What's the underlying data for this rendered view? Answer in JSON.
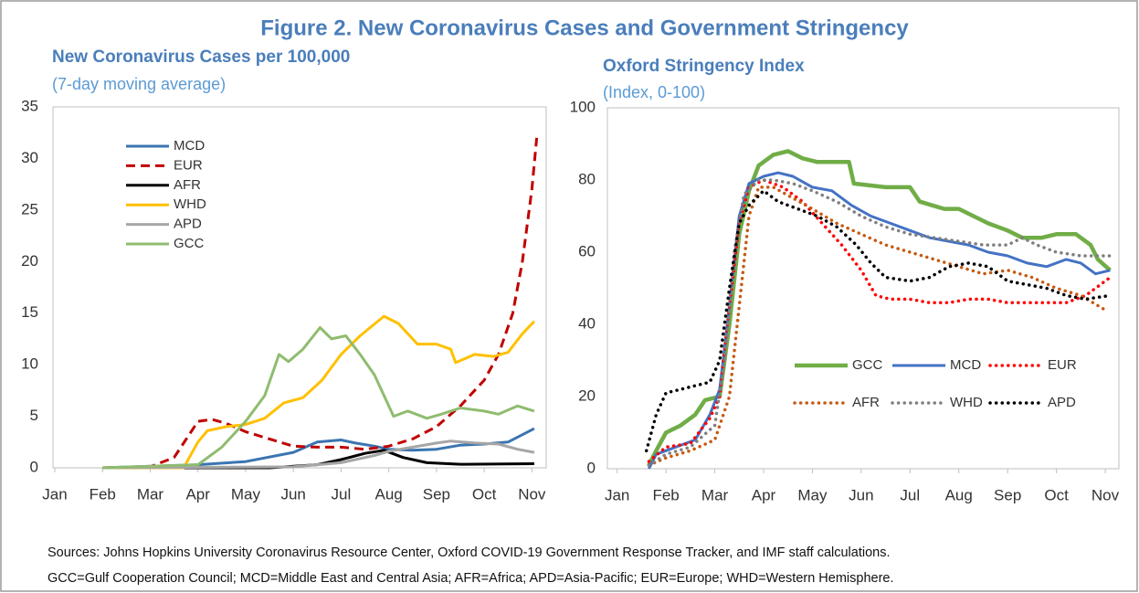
{
  "title": "Figure 2. New Coronavirus Cases and Government Stringency",
  "sources": [
    "Sources: Johns Hopkins University Coronavirus Resource Center, Oxford COVID-19 Government Response Tracker, and IMF staff calculations.",
    "GCC=Gulf Cooperation Council; MCD=Middle East and Central Asia; AFR=Africa; APD=Asia-Pacific; EUR=Europe; WHD=Western Hemisphere."
  ],
  "chart_data": [
    {
      "type": "line",
      "title": "New Coronavirus Cases per 100,000",
      "subtitle": "(7-day moving average)",
      "xlim": [
        0,
        10.3
      ],
      "ylim": [
        0,
        35
      ],
      "yticks": [
        0,
        5,
        10,
        15,
        20,
        25,
        30,
        35
      ],
      "xticks": [
        {
          "value": 0,
          "label": "Jan"
        },
        {
          "value": 1,
          "label": "Feb"
        },
        {
          "value": 2,
          "label": "Mar"
        },
        {
          "value": 3,
          "label": "Apr"
        },
        {
          "value": 4,
          "label": "May"
        },
        {
          "value": 5,
          "label": "Jun"
        },
        {
          "value": 6,
          "label": "Jul"
        },
        {
          "value": 7,
          "label": "Aug"
        },
        {
          "value": 8,
          "label": "Sep"
        },
        {
          "value": 9,
          "label": "Oct"
        },
        {
          "value": 10,
          "label": "Nov"
        }
      ],
      "legend": "upper-left",
      "grid": false,
      "series": [
        {
          "name": "MCD",
          "color": "#3a75b0",
          "dash": "solid",
          "x": [
            1,
            3,
            4,
            5,
            5.5,
            6,
            6.3,
            6.7,
            7,
            7.5,
            8,
            8.5,
            9,
            9.5,
            10.05
          ],
          "values": [
            0,
            0.3,
            0.6,
            1.5,
            2.5,
            2.7,
            2.4,
            2.1,
            1.8,
            1.7,
            1.8,
            2.2,
            2.3,
            2.5,
            3.8
          ]
        },
        {
          "name": "EUR",
          "color": "#c00000",
          "dash": "dashed",
          "x": [
            1,
            2,
            2.5,
            3,
            3.3,
            3.6,
            4,
            4.5,
            5,
            5.5,
            6,
            6.5,
            7,
            7.5,
            8,
            8.5,
            9,
            9.3,
            9.6,
            9.8,
            10,
            10.1
          ],
          "values": [
            0,
            0.1,
            1,
            4.5,
            4.7,
            4.3,
            3.5,
            2.8,
            2.1,
            2,
            2,
            1.8,
            2.1,
            2.8,
            4,
            6,
            8.5,
            11,
            15,
            20,
            27,
            32
          ]
        },
        {
          "name": "AFR",
          "color": "#000000",
          "dash": "solid",
          "x": [
            1,
            4.5,
            5.5,
            6,
            6.5,
            6.9,
            7.3,
            7.8,
            8.5,
            10.05
          ],
          "values": [
            0,
            0,
            0.3,
            0.8,
            1.4,
            1.7,
            1,
            0.5,
            0.35,
            0.4
          ]
        },
        {
          "name": "WHD",
          "color": "#ffc000",
          "dash": "solid",
          "x": [
            1,
            2.7,
            3,
            3.2,
            3.6,
            4,
            4.4,
            4.8,
            5.2,
            5.6,
            6,
            6.4,
            6.9,
            7.2,
            7.6,
            8,
            8.3,
            8.4,
            8.8,
            9.2,
            9.5,
            9.8,
            10.05
          ],
          "values": [
            0,
            0,
            2.5,
            3.6,
            4,
            4.2,
            4.8,
            6.3,
            6.8,
            8.5,
            11,
            12.8,
            14.7,
            14,
            12,
            12,
            11.5,
            10.2,
            11,
            10.8,
            11.2,
            13,
            14.2
          ]
        },
        {
          "name": "APD",
          "color": "#a6a6a6",
          "dash": "solid",
          "x": [
            1,
            5,
            6,
            6.7,
            7,
            7.5,
            8,
            8.3,
            8.8,
            9.3,
            9.7,
            10.05
          ],
          "values": [
            0,
            0.1,
            0.5,
            1.2,
            1.6,
            2,
            2.4,
            2.6,
            2.4,
            2.3,
            1.8,
            1.5
          ]
        },
        {
          "name": "GCC",
          "color": "#8fbc6f",
          "dash": "solid",
          "x": [
            1,
            3,
            3.5,
            4,
            4.4,
            4.7,
            4.9,
            5.2,
            5.56,
            5.8,
            6.1,
            6.4,
            6.7,
            7.1,
            7.4,
            7.8,
            8.1,
            8.5,
            9,
            9.3,
            9.7,
            10.05
          ],
          "values": [
            0,
            0.3,
            2,
            4.5,
            7,
            11,
            10.3,
            11.5,
            13.6,
            12.5,
            12.8,
            11,
            9,
            5,
            5.5,
            4.8,
            5.2,
            5.8,
            5.5,
            5.2,
            6,
            5.5
          ]
        }
      ]
    },
    {
      "type": "line",
      "title": "Oxford Stringency Index",
      "subtitle": "(Index, 0-100)",
      "xlim": [
        -0.2,
        10.28
      ],
      "ylim": [
        0,
        100
      ],
      "yticks": [
        0,
        20,
        40,
        60,
        80,
        100
      ],
      "xticks": [
        {
          "value": 0,
          "label": "Jan"
        },
        {
          "value": 1,
          "label": "Feb"
        },
        {
          "value": 2,
          "label": "Mar"
        },
        {
          "value": 3,
          "label": "Apr"
        },
        {
          "value": 4,
          "label": "May"
        },
        {
          "value": 5,
          "label": "Jun"
        },
        {
          "value": 6,
          "label": "Jul"
        },
        {
          "value": 7,
          "label": "Aug"
        },
        {
          "value": 8,
          "label": "Sep"
        },
        {
          "value": 9,
          "label": "Oct"
        },
        {
          "value": 10,
          "label": "Nov"
        }
      ],
      "legend": "lower-right",
      "grid": false,
      "series": [
        {
          "name": "GCC",
          "color": "#70ad47",
          "dash": "solid",
          "x": [
            0.65,
            0.8,
            1,
            1.3,
            1.6,
            1.8,
            2.1,
            2.3,
            2.5,
            2.7,
            2.9,
            3.2,
            3.5,
            3.8,
            4.1,
            4.5,
            4.75,
            4.85,
            5.5,
            6,
            6.2,
            6.7,
            7,
            7.3,
            7.6,
            8,
            8.3,
            8.7,
            9,
            9.4,
            9.7,
            9.85,
            10.1
          ],
          "values": [
            1,
            5,
            10,
            12,
            15,
            19,
            20,
            40,
            65,
            77,
            84,
            87,
            88,
            86,
            85,
            85,
            85,
            79,
            78,
            78,
            74,
            72,
            72,
            70,
            68,
            66,
            64,
            64,
            65,
            65,
            62,
            58,
            55
          ]
        },
        {
          "name": "MCD",
          "color": "#4472c4",
          "dash": "solid",
          "x": [
            0.65,
            0.8,
            1.2,
            1.6,
            1.9,
            2.1,
            2.3,
            2.5,
            2.7,
            3,
            3.3,
            3.6,
            4,
            4.4,
            4.8,
            5.2,
            5.6,
            6,
            6.4,
            6.8,
            7.2,
            7.6,
            8,
            8.4,
            8.8,
            9.2,
            9.5,
            9.8,
            10.1
          ],
          "values": [
            0,
            4,
            6,
            8,
            15,
            22,
            45,
            70,
            79,
            81,
            82,
            81,
            78,
            77,
            73,
            70,
            68,
            66,
            64,
            63,
            62,
            60,
            59,
            57,
            56,
            58,
            57,
            54,
            55
          ]
        },
        {
          "name": "EUR",
          "color": "#ff0000",
          "dash": "dotted",
          "x": [
            0.65,
            1,
            1.5,
            1.9,
            2.1,
            2.3,
            2.5,
            2.7,
            3,
            3.4,
            3.8,
            4.2,
            4.6,
            5,
            5.3,
            5.6,
            6,
            6.4,
            6.8,
            7.2,
            7.6,
            8,
            8.4,
            8.8,
            9.2,
            9.6,
            10,
            10.1
          ],
          "values": [
            2,
            6,
            7,
            14,
            20,
            45,
            68,
            78,
            80,
            78,
            74,
            68,
            62,
            55,
            48,
            47,
            47,
            46,
            46,
            47,
            47,
            46,
            46,
            46,
            46,
            48,
            52,
            53
          ]
        },
        {
          "name": "AFR",
          "color": "#c55a11",
          "dash": "dotted",
          "x": [
            0.65,
            1,
            1.5,
            2,
            2.3,
            2.5,
            2.7,
            2.9,
            3.2,
            3.6,
            4,
            4.5,
            5,
            5.5,
            6,
            6.5,
            7,
            7.5,
            8,
            8.5,
            9,
            9.5,
            10
          ],
          "values": [
            1,
            3,
            5,
            8,
            20,
            45,
            70,
            78,
            78,
            75,
            72,
            68,
            65,
            62,
            60,
            58,
            56,
            54,
            55,
            53,
            50,
            48,
            44
          ]
        },
        {
          "name": "WHD",
          "color": "#7f7f7f",
          "dash": "dotted",
          "x": [
            0.65,
            1,
            1.5,
            2,
            2.2,
            2.4,
            2.6,
            2.9,
            3.2,
            3.6,
            4,
            4.5,
            5,
            5.5,
            6,
            6.5,
            7,
            7.5,
            8,
            8.3,
            8.6,
            9,
            9.5,
            10.1
          ],
          "values": [
            1,
            4,
            6,
            12,
            30,
            60,
            76,
            80,
            80,
            79,
            77,
            74,
            70,
            67,
            65,
            64,
            63,
            62,
            62,
            64,
            62,
            60,
            59,
            59
          ]
        },
        {
          "name": "APD",
          "color": "#000000",
          "dash": "dotted",
          "x": [
            0.6,
            0.8,
            1,
            1.3,
            1.6,
            1.9,
            2.1,
            2.3,
            2.5,
            2.7,
            3,
            3.3,
            3.7,
            4.1,
            4.5,
            4.9,
            5.2,
            5.5,
            6,
            6.4,
            6.8,
            7.2,
            7.6,
            8,
            8.4,
            8.8,
            9.2,
            9.6,
            10.1
          ],
          "values": [
            5,
            15,
            21,
            22,
            23,
            24,
            30,
            50,
            68,
            73,
            77,
            74,
            72,
            70,
            67,
            62,
            57,
            53,
            52,
            53,
            56,
            57,
            56,
            52,
            51,
            50,
            48,
            47,
            48
          ]
        }
      ]
    }
  ]
}
